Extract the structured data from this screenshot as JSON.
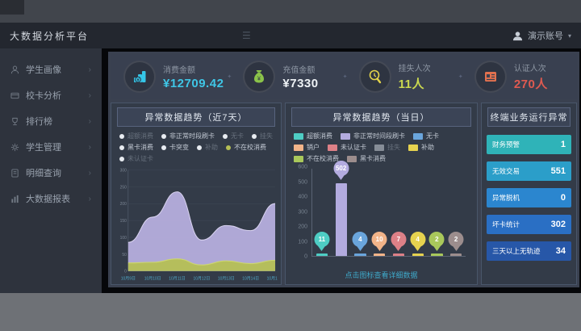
{
  "navbar": {
    "title": "大数据分析平台",
    "user_name": "演示账号",
    "caret": "▾"
  },
  "sidebar": {
    "items": [
      {
        "label": "学生画像"
      },
      {
        "label": "校卡分析"
      },
      {
        "label": "排行榜"
      },
      {
        "label": "学生管理"
      },
      {
        "label": "明细查询"
      },
      {
        "label": "大数据报表"
      }
    ],
    "chevron": "›"
  },
  "kpis": [
    {
      "label": "消费金额",
      "value": "¥12709.42",
      "value_color": "#3fc6e6",
      "icon_color": "#35c6e8"
    },
    {
      "label": "充值金额",
      "value": "¥7330",
      "value_color": "#eef2f5",
      "icon_color": "#8bc34a"
    },
    {
      "label": "挂失人次",
      "value": "11人",
      "value_color": "#cbd94f",
      "icon_color": "#e4d44a"
    },
    {
      "label": "认证人次",
      "value": "270人",
      "value_color": "#df5a50",
      "icon_color": "#e2714f"
    }
  ],
  "chart_data": [
    {
      "type": "area",
      "title": "异常数据趋势（近7天）",
      "legend": [
        {
          "label": "超额消费",
          "dim": true
        },
        {
          "label": "非正常时段刷卡",
          "dim": false
        },
        {
          "label": "无卡",
          "dim": true
        },
        {
          "label": "挂失",
          "dim": true
        },
        {
          "label": "黑卡消费",
          "dim": false
        },
        {
          "label": "卡突变",
          "dim": false
        },
        {
          "label": "补助",
          "dim": true
        },
        {
          "label": "不在校消费",
          "dim": false,
          "dot": "#b5bf55"
        },
        {
          "label": "未认证卡",
          "dim": true
        }
      ],
      "x": [
        "10月9日",
        "10月10日",
        "10月11日",
        "10月12日",
        "10月13日",
        "10月14日",
        "10月15日"
      ],
      "series": [
        {
          "name": "非正常时段刷卡",
          "fill": "#b6aede",
          "stroke": "#d9d3f0",
          "values": [
            85,
            160,
            235,
            92,
            135,
            120,
            200
          ]
        },
        {
          "name": "不在校消费",
          "fill": "#b5bf55",
          "stroke": "#cdd671",
          "values": [
            24,
            26,
            36,
            18,
            30,
            22,
            32
          ]
        }
      ],
      "ylim": [
        0,
        300
      ],
      "yticks": [
        0,
        50,
        100,
        150,
        200,
        250,
        300
      ],
      "grid": true,
      "legend_position": "top"
    },
    {
      "type": "bar",
      "title": "异常数据趋势（当日）",
      "legend": [
        {
          "label": "超额消费",
          "color": "#4ecdc4"
        },
        {
          "label": "非正常时间段刷卡",
          "color": "#b3abdf"
        },
        {
          "label": "无卡",
          "color": "#6aa5dc"
        },
        {
          "label": "销户",
          "color": "#f2b489"
        },
        {
          "label": "未认证卡",
          "color": "#dd8087"
        },
        {
          "label": "挂失",
          "color": "#868d97",
          "dim": true
        },
        {
          "label": "补助",
          "color": "#e6d24f"
        },
        {
          "label": "不在校消费",
          "color": "#a9c85b"
        },
        {
          "label": "黑卡消费",
          "color": "#9c8d8d"
        }
      ],
      "categories": [
        "超额消费",
        "非正常时间段刷卡",
        "无卡",
        "销户",
        "未认证卡",
        "补助",
        "不在校消费",
        "黑卡消费"
      ],
      "values": [
        11,
        502,
        4,
        10,
        7,
        4,
        2,
        2
      ],
      "colors": [
        "#4ecdc4",
        "#b3abdf",
        "#6aa5dc",
        "#f2b489",
        "#dd8087",
        "#e6d24f",
        "#a9c85b",
        "#9c8d8d"
      ],
      "ylim": [
        0,
        600
      ],
      "yticks": [
        0,
        100,
        200,
        300,
        400,
        500,
        600
      ],
      "tip": "点击图标查看详细数据",
      "legend_position": "top"
    }
  ],
  "terminal_panel": {
    "title": "终端业务运行异常",
    "rows": [
      {
        "label": "财务预警",
        "value": "1",
        "color": "#2fb3b8"
      },
      {
        "label": "无效交易",
        "value": "551",
        "color": "#2b9ec9"
      },
      {
        "label": "异常脱机",
        "value": "0",
        "color": "#2b86cf"
      },
      {
        "label": "坏卡统计",
        "value": "302",
        "color": "#2a6fc4"
      },
      {
        "label": "三天以上无轨迹",
        "value": "34",
        "color": "#2757a8"
      }
    ]
  }
}
